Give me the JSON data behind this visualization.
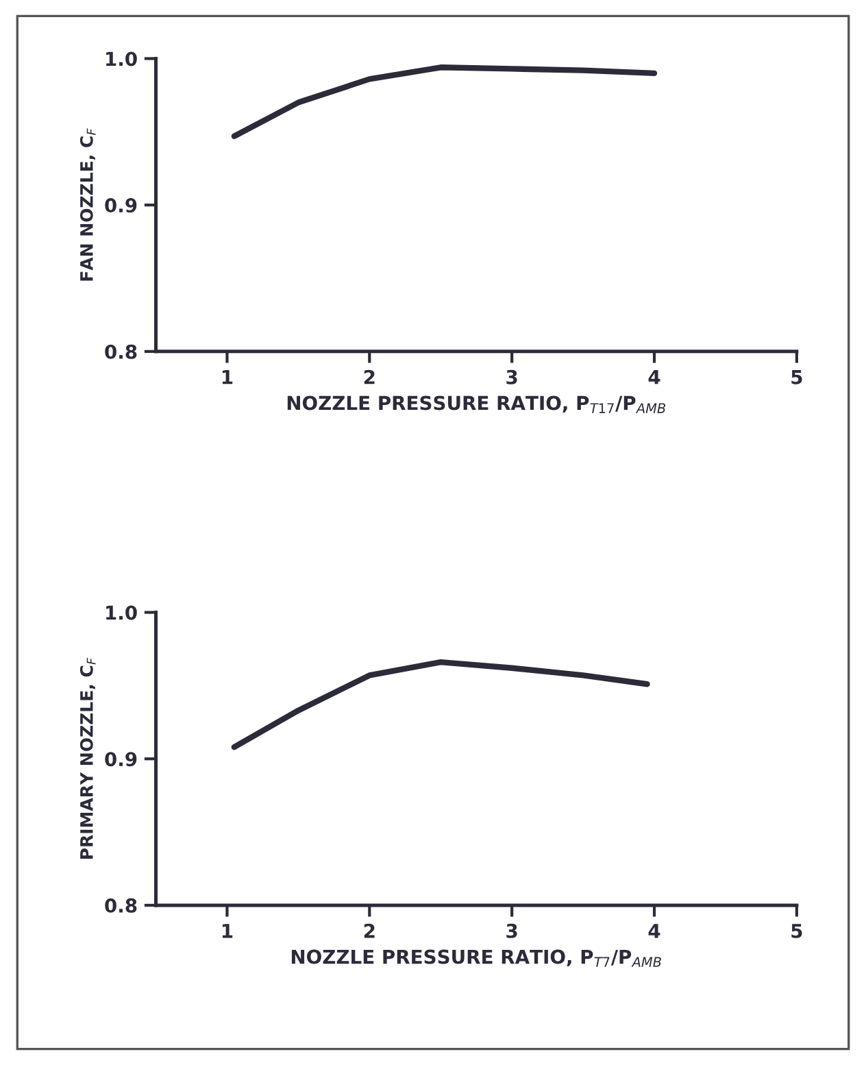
{
  "chart_data": [
    {
      "type": "line",
      "xlabel": "NOZZLE PRESSURE RATIO, P$_{T17}$/P$_{AMB}$",
      "ylabel": "FAN NOZZLE, C$_{F}$",
      "x": [
        1.05,
        1.5,
        2,
        2.5,
        3,
        3.5,
        4
      ],
      "series": [
        {
          "color": "#2b2b3a",
          "values": [
            0.947,
            0.97,
            0.986,
            0.994,
            0.993,
            0.992,
            0.99
          ]
        }
      ],
      "xlim": [
        0.5,
        5
      ],
      "xticks": [
        1,
        2,
        3,
        4,
        5
      ],
      "ylim": [
        0.8,
        1.0
      ],
      "yticks": [
        {
          "value": 0.8,
          "label": "0.8"
        },
        {
          "value": 0.9,
          "label": "0.9"
        },
        {
          "value": 1.0,
          "label": "1.0"
        }
      ],
      "grid": false,
      "legend": false,
      "marker": "none",
      "line_style": "solid"
    },
    {
      "type": "line",
      "xlabel": "NOZZLE PRESSURE RATIO, P$_{T7}$/P$_{AMB}$",
      "ylabel": "PRIMARY NOZZLE, C$_{F}$",
      "x": [
        1.05,
        1.5,
        2,
        2.5,
        3,
        3.5,
        3.95
      ],
      "series": [
        {
          "color": "#2b2b3a",
          "values": [
            0.908,
            0.933,
            0.957,
            0.966,
            0.962,
            0.957,
            0.951
          ]
        }
      ],
      "xlim": [
        0.5,
        5
      ],
      "xticks": [
        1,
        2,
        3,
        4,
        5
      ],
      "ylim": [
        0.8,
        1.0
      ],
      "yticks": [
        {
          "value": 0.8,
          "label": "0.8"
        },
        {
          "value": 0.9,
          "label": "0.9"
        },
        {
          "value": 1.0,
          "label": "1.0"
        }
      ],
      "grid": false,
      "legend": false,
      "marker": "none",
      "line_style": "solid"
    }
  ]
}
